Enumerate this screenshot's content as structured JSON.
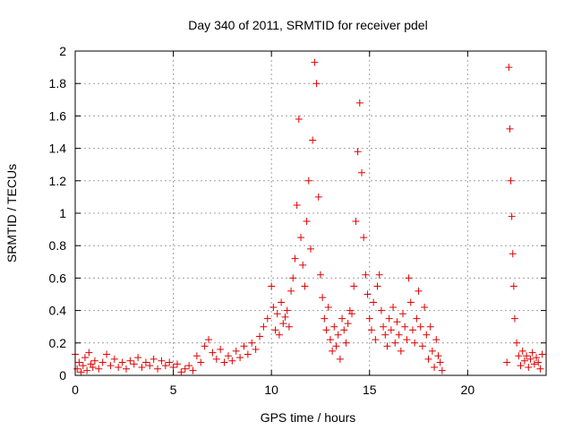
{
  "chart_data": {
    "type": "scatter",
    "title": "Day 340 of 2011, SRMTID for receiver pdel",
    "xlabel": "GPS time / hours",
    "ylabel": "SRMTID / TECUs",
    "xlim": [
      0,
      24
    ],
    "ylim": [
      0,
      2
    ],
    "x_ticks": [
      0,
      5,
      10,
      15,
      20
    ],
    "x_tick_labels": [
      "0",
      "5",
      "10",
      "15",
      "20"
    ],
    "y_ticks": [
      0,
      0.2,
      0.4,
      0.6,
      0.8,
      1,
      1.2,
      1.4,
      1.6,
      1.8,
      2
    ],
    "y_tick_labels": [
      "0",
      "0.2",
      "0.4",
      "0.6",
      "0.8",
      "1",
      "1.2",
      "1.4",
      "1.6",
      "1.8",
      "2"
    ],
    "grid": true,
    "marker": "+",
    "marker_color": "#e00000",
    "series": [
      {
        "name": "",
        "points": [
          [
            0.0,
            0.13
          ],
          [
            0.1,
            0.04
          ],
          [
            0.2,
            0.08
          ],
          [
            0.3,
            0.02
          ],
          [
            0.4,
            0.06
          ],
          [
            0.5,
            0.11
          ],
          [
            0.6,
            0.03
          ],
          [
            0.7,
            0.14
          ],
          [
            0.8,
            0.07
          ],
          [
            0.9,
            0.05
          ],
          [
            1.0,
            0.09
          ],
          [
            1.2,
            0.04
          ],
          [
            1.4,
            0.08
          ],
          [
            1.6,
            0.13
          ],
          [
            1.8,
            0.06
          ],
          [
            2.0,
            0.1
          ],
          [
            2.2,
            0.05
          ],
          [
            2.4,
            0.08
          ],
          [
            2.6,
            0.04
          ],
          [
            2.8,
            0.09
          ],
          [
            3.0,
            0.07
          ],
          [
            3.2,
            0.11
          ],
          [
            3.4,
            0.05
          ],
          [
            3.6,
            0.08
          ],
          [
            3.8,
            0.06
          ],
          [
            4.0,
            0.1
          ],
          [
            4.2,
            0.04
          ],
          [
            4.4,
            0.09
          ],
          [
            4.6,
            0.06
          ],
          [
            4.8,
            0.08
          ],
          [
            5.0,
            0.05
          ],
          [
            5.2,
            0.07
          ],
          [
            5.4,
            0.02
          ],
          [
            5.6,
            0.04
          ],
          [
            5.8,
            0.06
          ],
          [
            6.0,
            0.03
          ],
          [
            6.2,
            0.12
          ],
          [
            6.4,
            0.08
          ],
          [
            6.6,
            0.18
          ],
          [
            6.8,
            0.22
          ],
          [
            7.0,
            0.14
          ],
          [
            7.2,
            0.1
          ],
          [
            7.4,
            0.16
          ],
          [
            7.6,
            0.08
          ],
          [
            7.8,
            0.12
          ],
          [
            8.0,
            0.09
          ],
          [
            8.2,
            0.15
          ],
          [
            8.4,
            0.11
          ],
          [
            8.6,
            0.18
          ],
          [
            8.8,
            0.13
          ],
          [
            9.0,
            0.2
          ],
          [
            9.2,
            0.16
          ],
          [
            9.4,
            0.24
          ],
          [
            9.6,
            0.3
          ],
          [
            9.8,
            0.35
          ],
          [
            10.0,
            0.55
          ],
          [
            10.1,
            0.42
          ],
          [
            10.2,
            0.28
          ],
          [
            10.3,
            0.38
          ],
          [
            10.4,
            0.25
          ],
          [
            10.5,
            0.45
          ],
          [
            10.6,
            0.32
          ],
          [
            10.7,
            0.36
          ],
          [
            10.8,
            0.4
          ],
          [
            10.9,
            0.3
          ],
          [
            11.0,
            0.52
          ],
          [
            11.1,
            0.6
          ],
          [
            11.2,
            0.72
          ],
          [
            11.3,
            1.05
          ],
          [
            11.4,
            1.58
          ],
          [
            11.5,
            0.85
          ],
          [
            11.6,
            0.68
          ],
          [
            11.7,
            0.55
          ],
          [
            11.8,
            0.95
          ],
          [
            11.9,
            1.2
          ],
          [
            12.0,
            0.78
          ],
          [
            12.1,
            1.45
          ],
          [
            12.2,
            1.93
          ],
          [
            12.3,
            1.8
          ],
          [
            12.4,
            1.1
          ],
          [
            12.5,
            0.62
          ],
          [
            12.6,
            0.48
          ],
          [
            12.7,
            0.35
          ],
          [
            12.8,
            0.28
          ],
          [
            12.9,
            0.42
          ],
          [
            13.0,
            0.22
          ],
          [
            13.1,
            0.15
          ],
          [
            13.2,
            0.3
          ],
          [
            13.3,
            0.18
          ],
          [
            13.4,
            0.25
          ],
          [
            13.5,
            0.1
          ],
          [
            13.6,
            0.35
          ],
          [
            13.7,
            0.28
          ],
          [
            13.8,
            0.2
          ],
          [
            13.9,
            0.32
          ],
          [
            14.0,
            0.4
          ],
          [
            14.1,
            0.38
          ],
          [
            14.2,
            0.55
          ],
          [
            14.3,
            0.95
          ],
          [
            14.4,
            1.38
          ],
          [
            14.5,
            1.68
          ],
          [
            14.6,
            1.25
          ],
          [
            14.7,
            0.85
          ],
          [
            14.8,
            0.62
          ],
          [
            14.9,
            0.5
          ],
          [
            15.0,
            0.35
          ],
          [
            15.1,
            0.28
          ],
          [
            15.2,
            0.45
          ],
          [
            15.3,
            0.22
          ],
          [
            15.4,
            0.55
          ],
          [
            15.5,
            0.62
          ],
          [
            15.6,
            0.4
          ],
          [
            15.7,
            0.3
          ],
          [
            15.8,
            0.25
          ],
          [
            15.9,
            0.18
          ],
          [
            16.0,
            0.35
          ],
          [
            16.1,
            0.28
          ],
          [
            16.2,
            0.42
          ],
          [
            16.3,
            0.2
          ],
          [
            16.4,
            0.33
          ],
          [
            16.5,
            0.25
          ],
          [
            16.6,
            0.15
          ],
          [
            16.7,
            0.38
          ],
          [
            16.8,
            0.3
          ],
          [
            16.9,
            0.22
          ],
          [
            17.0,
            0.6
          ],
          [
            17.1,
            0.45
          ],
          [
            17.2,
            0.28
          ],
          [
            17.3,
            0.2
          ],
          [
            17.4,
            0.35
          ],
          [
            17.5,
            0.52
          ],
          [
            17.6,
            0.3
          ],
          [
            17.7,
            0.18
          ],
          [
            17.8,
            0.42
          ],
          [
            17.9,
            0.25
          ],
          [
            18.0,
            0.1
          ],
          [
            18.1,
            0.3
          ],
          [
            18.2,
            0.15
          ],
          [
            18.3,
            0.05
          ],
          [
            18.4,
            0.22
          ],
          [
            18.5,
            0.12
          ],
          [
            18.6,
            0.08
          ],
          [
            18.7,
            0.03
          ],
          [
            22.0,
            0.08
          ],
          [
            22.1,
            1.9
          ],
          [
            22.15,
            1.52
          ],
          [
            22.2,
            1.2
          ],
          [
            22.25,
            0.98
          ],
          [
            22.3,
            0.75
          ],
          [
            22.35,
            0.55
          ],
          [
            22.4,
            0.35
          ],
          [
            22.5,
            0.2
          ],
          [
            22.6,
            0.12
          ],
          [
            22.7,
            0.06
          ],
          [
            22.8,
            0.15
          ],
          [
            22.9,
            0.09
          ],
          [
            23.0,
            0.12
          ],
          [
            23.1,
            0.05
          ],
          [
            23.2,
            0.1
          ],
          [
            23.3,
            0.14
          ],
          [
            23.4,
            0.07
          ],
          [
            23.5,
            0.11
          ],
          [
            23.6,
            0.08
          ],
          [
            23.7,
            0.04
          ],
          [
            23.8,
            0.13
          ]
        ]
      }
    ]
  }
}
